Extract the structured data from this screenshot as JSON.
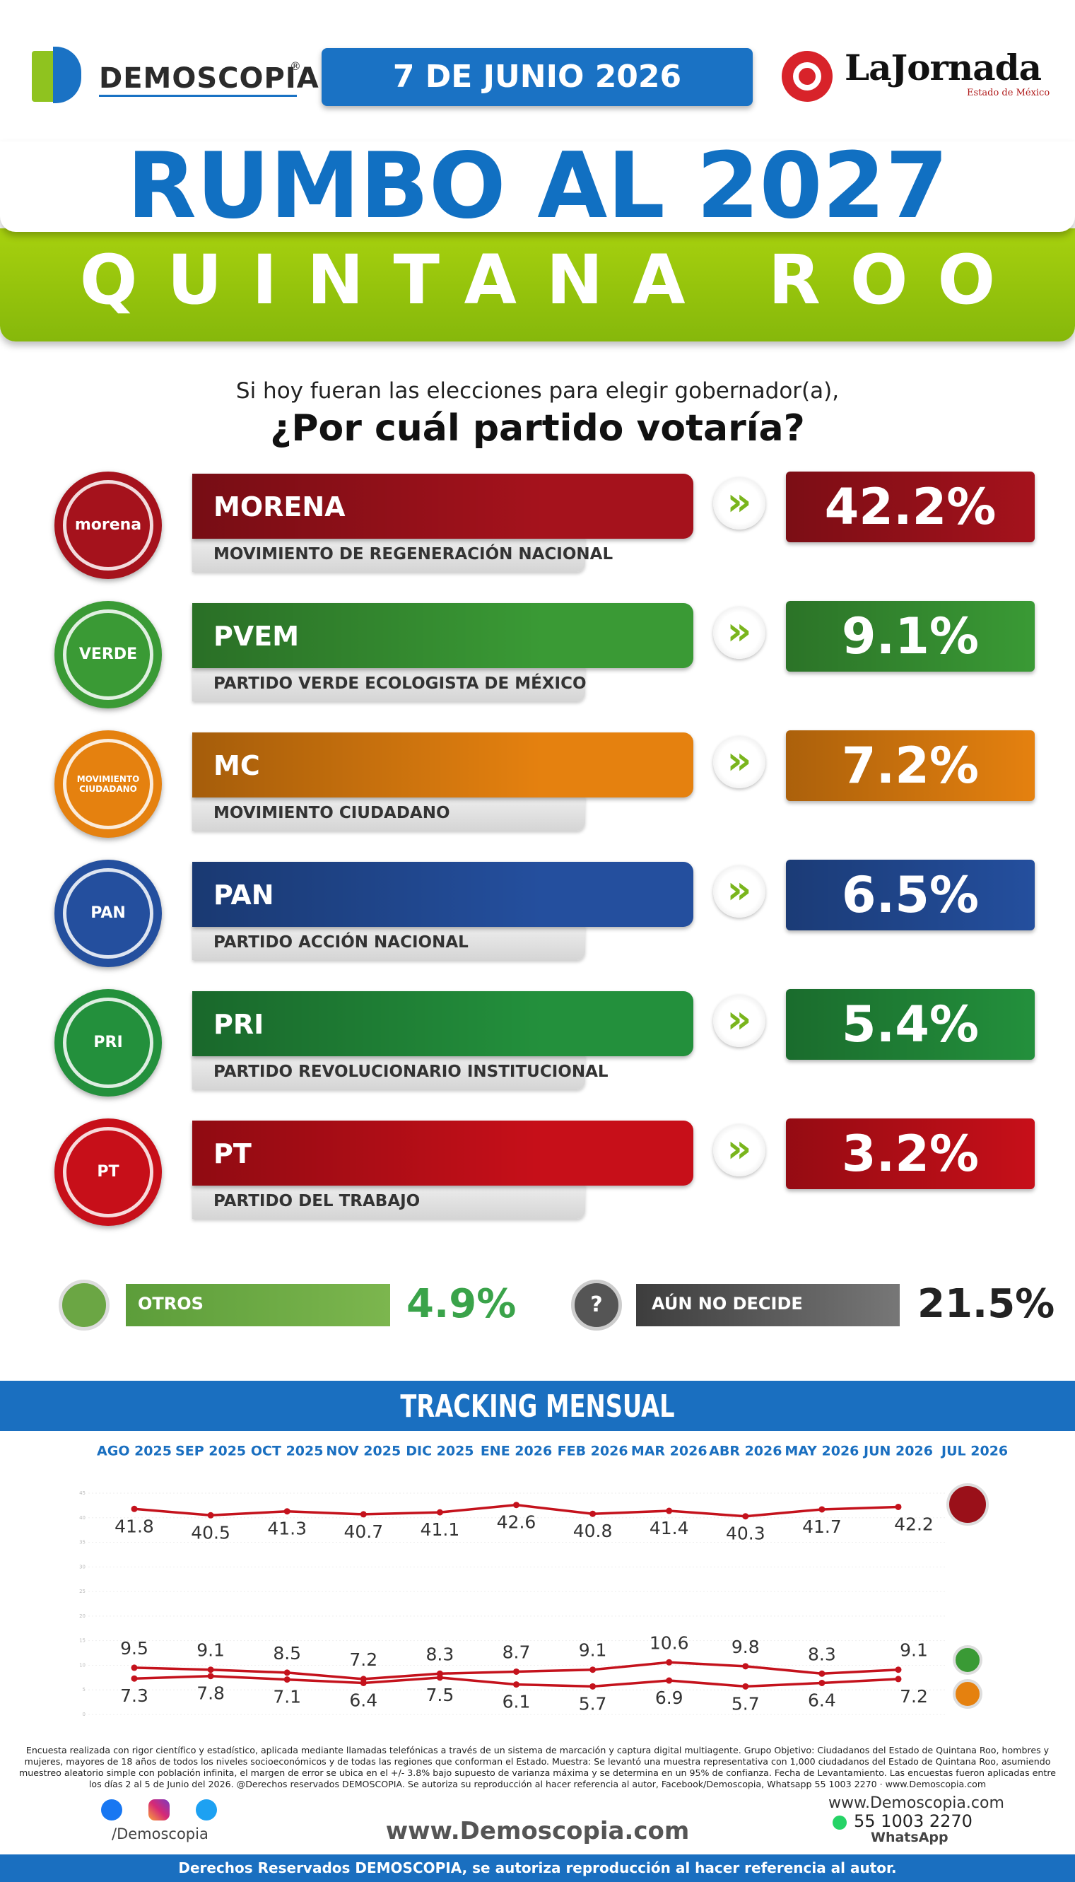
{
  "header": {
    "brand": "DEMOSCOPIA",
    "brand_mark": "®",
    "date": "7 DE JUNIO 2026",
    "partner": "LaJornada",
    "partner_sub": "Estado de México"
  },
  "title": "RUMBO AL 2027",
  "subtitle": "QUINTANA ROO",
  "question": {
    "line1": "Si hoy fueran las elecciones para elegir gobernador(a),",
    "line2": "¿Por cuál partido votaría?"
  },
  "parties": [
    {
      "logo": "morena",
      "abbr": "MORENA",
      "name": "MOVIMIENTO DE REGENERACIÓN NACIONAL",
      "value": "42.2%",
      "color": "#a5121c"
    },
    {
      "logo": "VERDE",
      "abbr": "PVEM",
      "name": "PARTIDO VERDE ECOLOGISTA DE MÉXICO",
      "value": "9.1%",
      "color": "#3a9a35"
    },
    {
      "logo": "MOVIMIENTO CIUDADANO",
      "abbr": "MC",
      "name": "MOVIMIENTO CIUDADANO",
      "value": "7.2%",
      "color": "#e5810f"
    },
    {
      "logo": "PAN",
      "abbr": "PAN",
      "name": "PARTIDO ACCIÓN NACIONAL",
      "value": "6.5%",
      "color": "#244f9e"
    },
    {
      "logo": "PRI",
      "abbr": "PRI",
      "name": "PARTIDO REVOLUCIONARIO INSTITUCIONAL",
      "value": "5.4%",
      "color": "#23903c"
    },
    {
      "logo": "PT",
      "abbr": "PT",
      "name": "PARTIDO DEL TRABAJO",
      "value": "3.2%",
      "color": "#c70f19"
    }
  ],
  "others": {
    "label": "OTROS",
    "value": "4.9%"
  },
  "undecided": {
    "icon": "?",
    "label": "AÚN NO DECIDE",
    "value": "21.5%"
  },
  "tracking_title": "TRACKING MENSUAL",
  "chart_data": {
    "type": "line",
    "categories": [
      "AGO 2025",
      "SEP 2025",
      "OCT 2025",
      "NOV 2025",
      "DIC 2025",
      "ENE 2026",
      "FEB 2026",
      "MAR 2026",
      "ABR 2026",
      "MAY 2026",
      "JUN 2026",
      "JUL 2026"
    ],
    "series": [
      {
        "color": "#c4121c",
        "values": [
          41.8,
          40.5,
          41.3,
          40.7,
          41.1,
          42.6,
          40.8,
          41.4,
          40.3,
          41.7,
          42.2,
          null
        ]
      },
      {
        "color": "#c4121c",
        "values": [
          9.5,
          9.1,
          8.5,
          7.2,
          8.3,
          8.7,
          9.1,
          10.6,
          9.8,
          8.3,
          9.1,
          null
        ]
      },
      {
        "color": "#c4121c",
        "values": [
          7.3,
          7.8,
          7.1,
          6.4,
          7.5,
          6.1,
          5.7,
          6.9,
          5.7,
          6.4,
          7.2,
          null
        ]
      }
    ],
    "ylim": [
      0,
      45
    ],
    "yticks": [
      0,
      5,
      10,
      15,
      20,
      25,
      30,
      35,
      40,
      45
    ],
    "grid": true
  },
  "footer": {
    "methodology": "Encuesta realizada con rigor científico y estadístico, aplicada mediante llamadas telefónicas a través de un sistema de marcación y captura digital multiagente. Grupo Objetivo: Ciudadanos del Estado de Quintana Roo, hombres y mujeres, mayores de 18 años de todos los niveles socioeconómicos y de todas las regiones que conforman el Estado. Muestra: Se levantó una muestra representativa con 1,000 ciudadanos del Estado de Quintana Roo, asumiendo muestreo aleatorio simple con población infinita, el margen de error se ubica en el +/- 3.8% bajo supuesto de varianza máxima y se determina en un 95% de confianza. Fecha de Levantamiento. Las encuestas fueron aplicadas entre los días 2 al 5 de Junio del 2026. @Derechos reservados DEMOSCOPIA. Se autoriza su reproducción al hacer referencia al autor, Facebook/Demoscopia, Whatsapp 55 1003 2270 · www.Demoscopia.com",
    "social": "/Demoscopia",
    "website": "www.Demoscopia.com",
    "site_right": "www.Demoscopia.com",
    "phone": "55 1003 2270",
    "whatsapp": "WhatsApp",
    "rights": "Derechos Reservados DEMOSCOPIA, se autoriza reproducción al hacer referencia al autor."
  }
}
